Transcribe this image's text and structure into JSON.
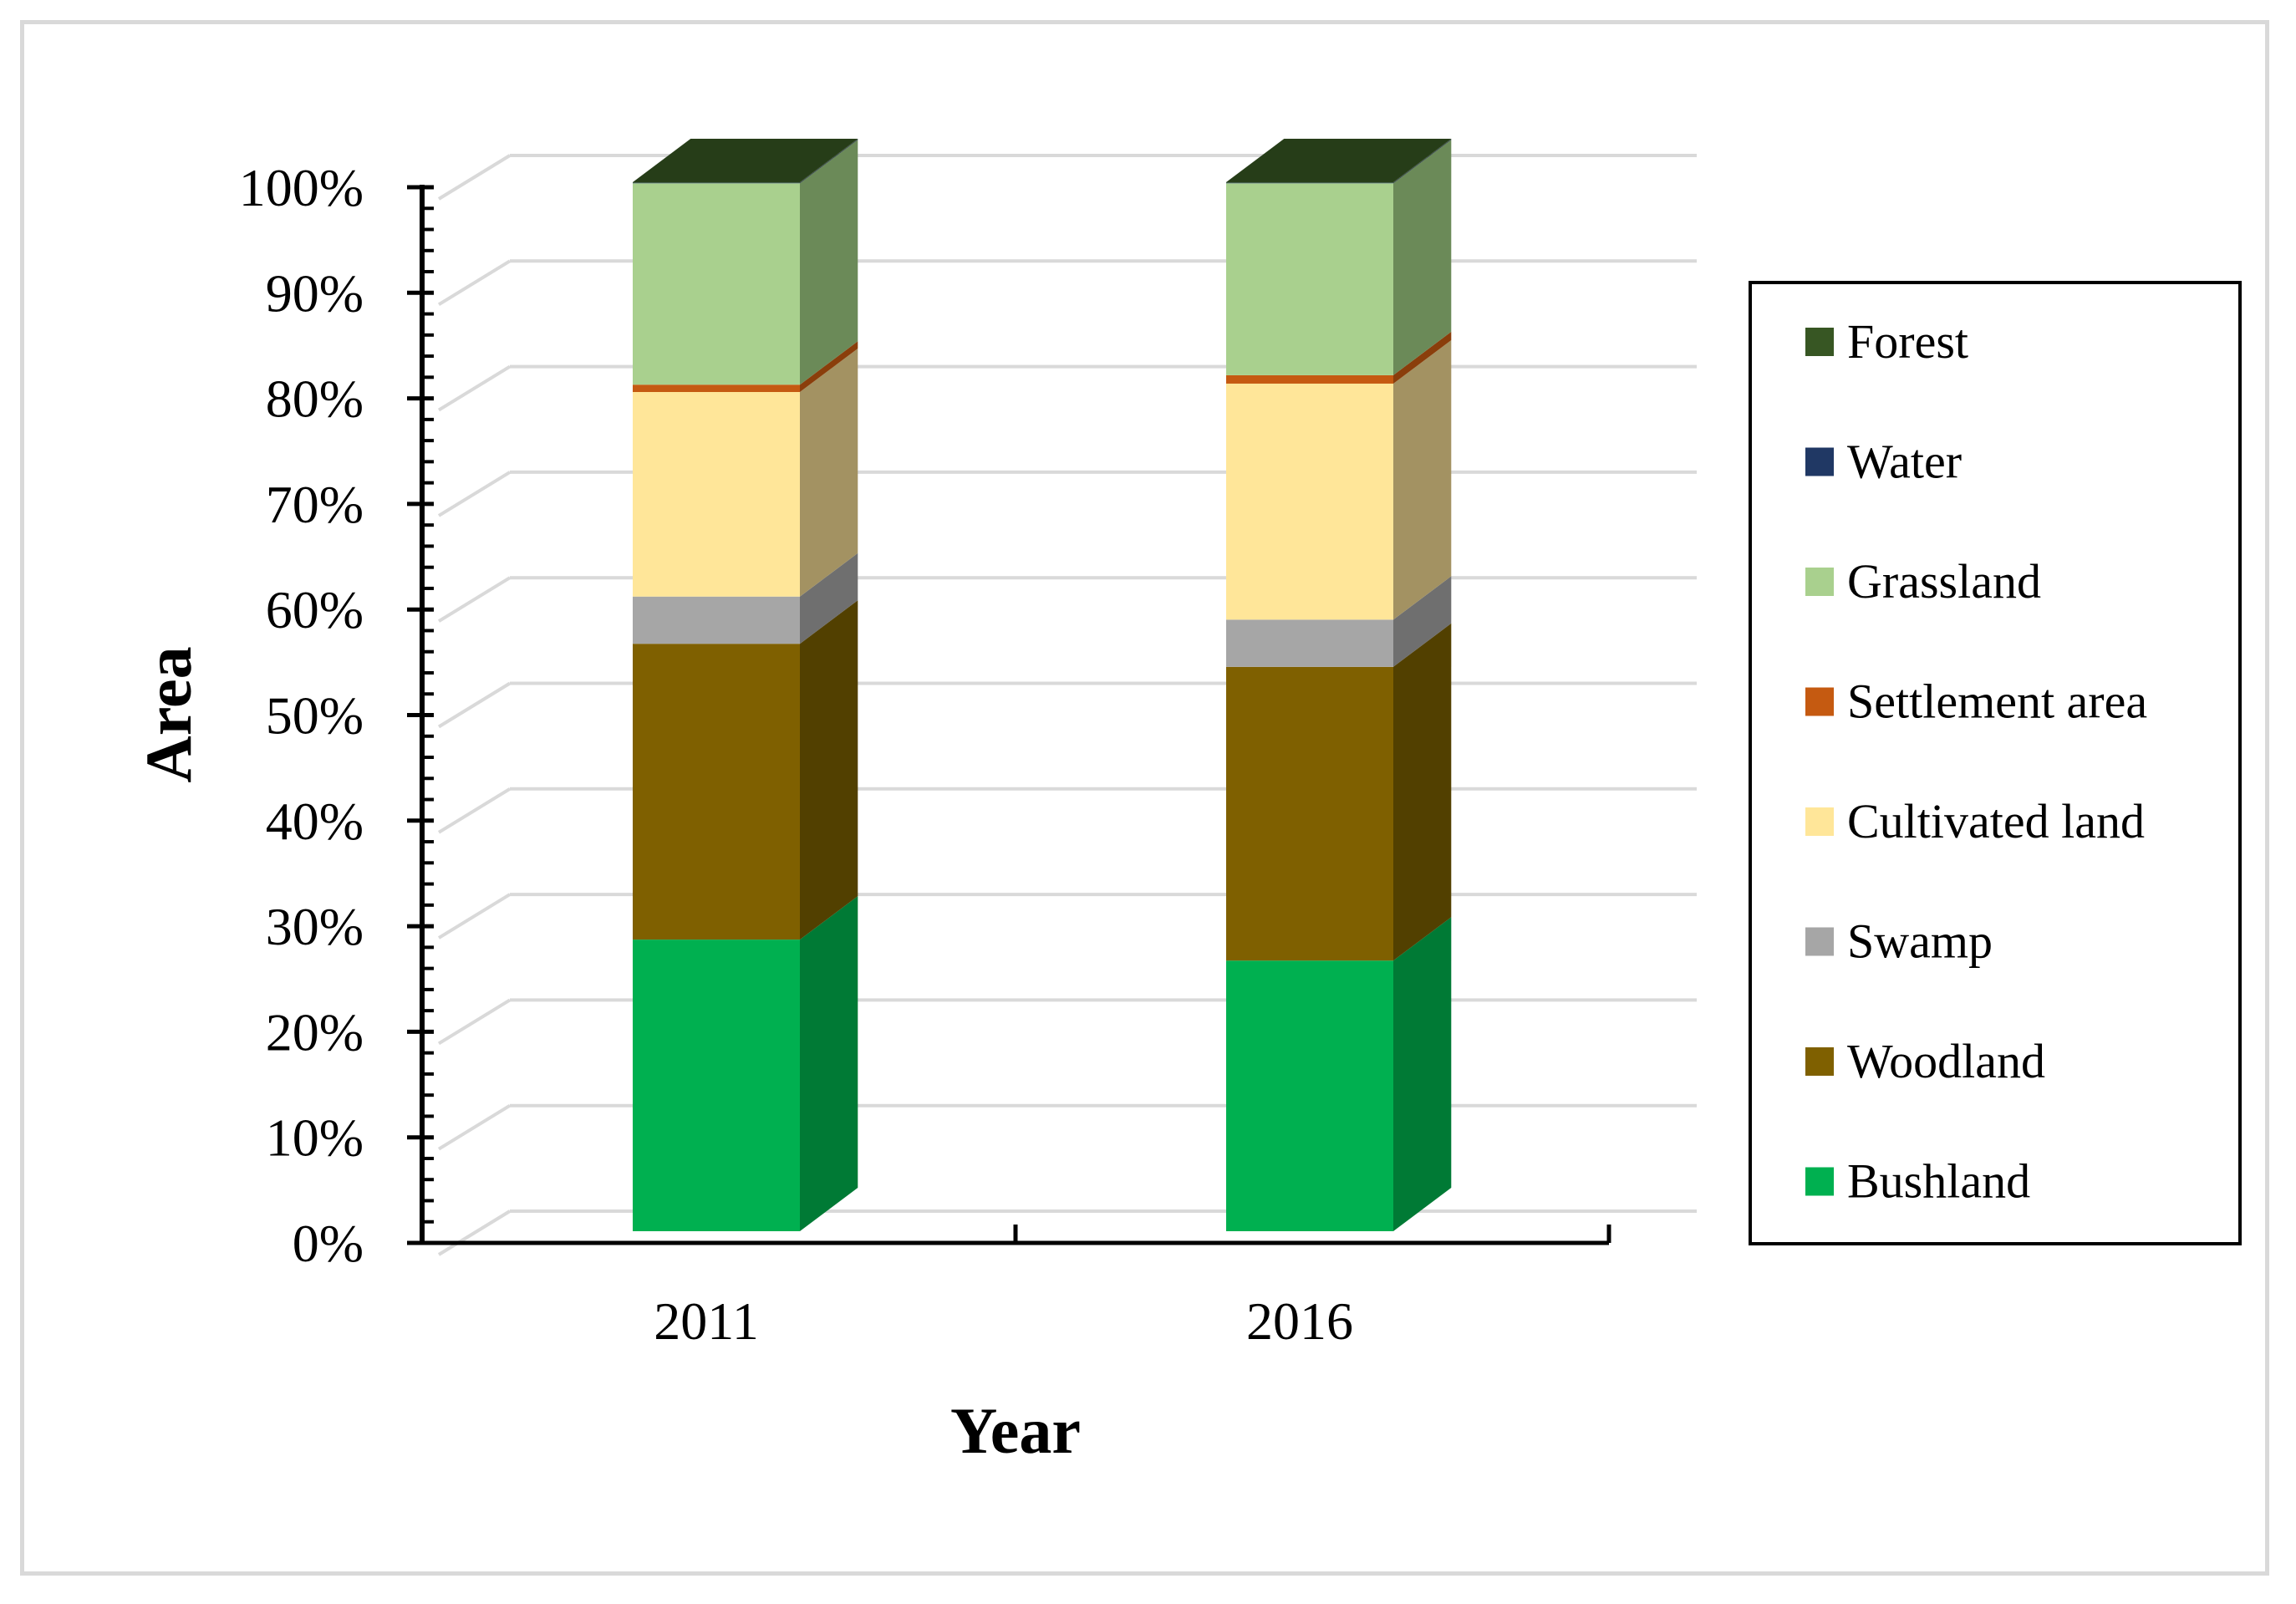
{
  "chart_data": {
    "type": "bar",
    "stacked": true,
    "percent_stacked": true,
    "three_d": true,
    "title": "",
    "xlabel": "Year",
    "ylabel": "Area",
    "ylim": [
      0,
      100
    ],
    "y_ticks": [
      "0%",
      "10%",
      "20%",
      "30%",
      "40%",
      "50%",
      "60%",
      "70%",
      "80%",
      "90%",
      "100%"
    ],
    "categories": [
      "2011",
      "2016"
    ],
    "legend_position": "right",
    "series": [
      {
        "name": "Bushland",
        "color": "#00b050",
        "side_color": "#007a35",
        "values": [
          27.8,
          25.8
        ]
      },
      {
        "name": "Woodland",
        "color": "#7f6000",
        "side_color": "#524000",
        "values": [
          28.2,
          28.0
        ]
      },
      {
        "name": "Swamp",
        "color": "#a6a6a6",
        "side_color": "#6f6f6f",
        "values": [
          4.5,
          4.5
        ]
      },
      {
        "name": "Cultivated land",
        "color": "#ffe699",
        "side_color": "#a39262",
        "values": [
          19.5,
          22.5
        ]
      },
      {
        "name": "Settlement area",
        "color": "#c55a11",
        "side_color": "#8a3e0b",
        "values": [
          0.7,
          0.8
        ]
      },
      {
        "name": "Grassland",
        "color": "#a9d08e",
        "side_color": "#6b8a58",
        "values": [
          19.2,
          18.3
        ]
      },
      {
        "name": "Water",
        "color": "#203864",
        "side_color": "#15254a",
        "values": [
          0.05,
          0.05
        ]
      },
      {
        "name": "Forest",
        "color": "#375623",
        "side_color": "#263d18",
        "values": [
          0.05,
          0.05
        ]
      }
    ],
    "legend_order": [
      "Forest",
      "Water",
      "Grassland",
      "Settlement area",
      "Cultivated land",
      "Swamp",
      "Woodland",
      "Bushland"
    ]
  }
}
